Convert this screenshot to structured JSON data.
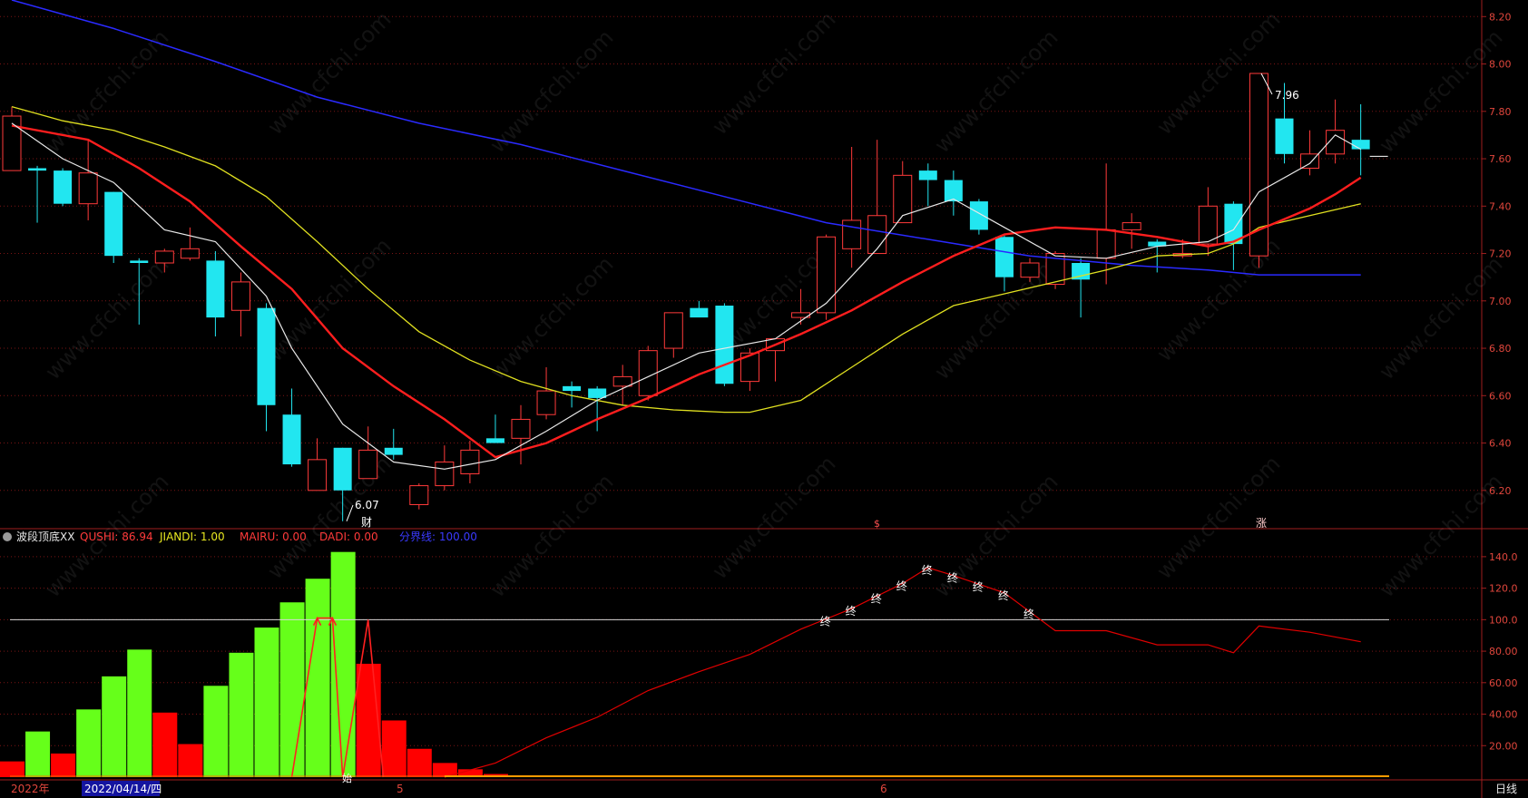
{
  "colors": {
    "background": "#000000",
    "grid": "#7a1414",
    "up": "#ff3a3a",
    "down": "#22e6f0",
    "ma5": "#e8e8e8",
    "ma10": "#ff1e1e",
    "ma20": "#e0e020",
    "ma60": "#2a2aff",
    "axis_text": "#e0463c",
    "indicator_green": "#66ff1a",
    "indicator_red": "#ff0000",
    "qushi_line": "#e00000"
  },
  "indicator_header": {
    "name": "波段顶底XX",
    "items": [
      {
        "label": "QUSHI: 86.94",
        "color": "#ff3a3a"
      },
      {
        "label": "JIANDI: 1.00",
        "color": "#e8e820"
      },
      {
        "label": "MAIRU: 0.00",
        "color": "#ff3a3a"
      },
      {
        "label": "DADI: 0.00",
        "color": "#ff3a3a"
      },
      {
        "label": "分界线: 100.00",
        "color": "#3a3aff"
      }
    ]
  },
  "price_axis": {
    "ticks": [
      "8.20",
      "8.00",
      "7.80",
      "7.60",
      "7.40",
      "7.20",
      "7.00",
      "6.80",
      "6.60",
      "6.40",
      "6.20"
    ]
  },
  "indicator_axis": {
    "ticks": [
      "140.0",
      "120.0",
      "100.0",
      "80.00",
      "60.00",
      "40.00",
      "20.00"
    ]
  },
  "date_axis": {
    "year_label": "2022年",
    "date_label": "2022/04/14/四",
    "month_labels": [
      "5",
      "6"
    ],
    "period_label": "日线"
  },
  "annotations": {
    "low_label": "6.07",
    "high_label": "7.96",
    "event_cai": "财",
    "event_s": "$",
    "event_zhang": "涨",
    "shi_label": "始",
    "zhong_label": "终"
  },
  "watermark": "www.cfchi.com",
  "chart_data": {
    "type": "candlestick",
    "price_range": [
      6.05,
      8.27
    ],
    "candles": [
      {
        "o": 7.55,
        "h": 7.82,
        "l": 7.55,
        "c": 7.78
      },
      {
        "o": 7.56,
        "h": 7.57,
        "l": 7.33,
        "c": 7.55
      },
      {
        "o": 7.55,
        "h": 7.56,
        "l": 7.4,
        "c": 7.41
      },
      {
        "o": 7.41,
        "h": 7.68,
        "l": 7.34,
        "c": 7.54
      },
      {
        "o": 7.46,
        "h": 7.46,
        "l": 7.16,
        "c": 7.19
      },
      {
        "o": 7.17,
        "h": 7.18,
        "l": 6.9,
        "c": 7.16
      },
      {
        "o": 7.16,
        "h": 7.22,
        "l": 7.12,
        "c": 7.21
      },
      {
        "o": 7.18,
        "h": 7.31,
        "l": 7.17,
        "c": 7.22
      },
      {
        "o": 7.17,
        "h": 7.21,
        "l": 6.85,
        "c": 6.93
      },
      {
        "o": 6.96,
        "h": 7.12,
        "l": 6.85,
        "c": 7.08
      },
      {
        "o": 6.97,
        "h": 6.99,
        "l": 6.45,
        "c": 6.56
      },
      {
        "o": 6.52,
        "h": 6.63,
        "l": 6.3,
        "c": 6.31
      },
      {
        "o": 6.2,
        "h": 6.42,
        "l": 6.2,
        "c": 6.33
      },
      {
        "o": 6.38,
        "h": 6.38,
        "l": 6.07,
        "c": 6.2
      },
      {
        "o": 6.25,
        "h": 6.47,
        "l": 6.25,
        "c": 6.37
      },
      {
        "o": 6.38,
        "h": 6.46,
        "l": 6.33,
        "c": 6.35
      },
      {
        "o": 6.14,
        "h": 6.23,
        "l": 6.12,
        "c": 6.22
      },
      {
        "o": 6.22,
        "h": 6.39,
        "l": 6.2,
        "c": 6.32
      },
      {
        "o": 6.27,
        "h": 6.41,
        "l": 6.23,
        "c": 6.37
      },
      {
        "o": 6.42,
        "h": 6.52,
        "l": 6.4,
        "c": 6.4
      },
      {
        "o": 6.42,
        "h": 6.56,
        "l": 6.31,
        "c": 6.5
      },
      {
        "o": 6.52,
        "h": 6.72,
        "l": 6.5,
        "c": 6.62
      },
      {
        "o": 6.64,
        "h": 6.66,
        "l": 6.55,
        "c": 6.62
      },
      {
        "o": 6.63,
        "h": 6.64,
        "l": 6.45,
        "c": 6.59
      },
      {
        "o": 6.64,
        "h": 6.73,
        "l": 6.56,
        "c": 6.68
      },
      {
        "o": 6.6,
        "h": 6.81,
        "l": 6.58,
        "c": 6.79
      },
      {
        "o": 6.8,
        "h": 6.95,
        "l": 6.76,
        "c": 6.95
      },
      {
        "o": 6.97,
        "h": 7.0,
        "l": 6.94,
        "c": 6.93
      },
      {
        "o": 6.98,
        "h": 6.99,
        "l": 6.64,
        "c": 6.65
      },
      {
        "o": 6.66,
        "h": 6.8,
        "l": 6.62,
        "c": 6.78
      },
      {
        "o": 6.79,
        "h": 6.84,
        "l": 6.66,
        "c": 6.84
      },
      {
        "o": 6.93,
        "h": 7.05,
        "l": 6.9,
        "c": 6.95
      },
      {
        "o": 6.95,
        "h": 7.28,
        "l": 6.92,
        "c": 7.27
      },
      {
        "o": 7.22,
        "h": 7.65,
        "l": 7.14,
        "c": 7.34
      },
      {
        "o": 7.2,
        "h": 7.68,
        "l": 7.2,
        "c": 7.36
      },
      {
        "o": 7.33,
        "h": 7.59,
        "l": 7.33,
        "c": 7.53
      },
      {
        "o": 7.55,
        "h": 7.58,
        "l": 7.4,
        "c": 7.51
      },
      {
        "o": 7.51,
        "h": 7.55,
        "l": 7.36,
        "c": 7.42
      },
      {
        "o": 7.42,
        "h": 7.43,
        "l": 7.28,
        "c": 7.3
      },
      {
        "o": 7.27,
        "h": 7.28,
        "l": 7.04,
        "c": 7.1
      },
      {
        "o": 7.1,
        "h": 7.18,
        "l": 7.08,
        "c": 7.16
      },
      {
        "o": 7.07,
        "h": 7.21,
        "l": 7.05,
        "c": 7.2
      },
      {
        "o": 7.16,
        "h": 7.18,
        "l": 6.93,
        "c": 7.09
      },
      {
        "o": 7.18,
        "h": 7.58,
        "l": 7.07,
        "c": 7.3
      },
      {
        "o": 7.3,
        "h": 7.37,
        "l": 7.22,
        "c": 7.33
      },
      {
        "o": 7.25,
        "h": 7.26,
        "l": 7.12,
        "c": 7.23
      },
      {
        "o": 7.19,
        "h": 7.26,
        "l": 7.18,
        "c": 7.2
      },
      {
        "o": 7.24,
        "h": 7.48,
        "l": 7.19,
        "c": 7.4
      },
      {
        "o": 7.41,
        "h": 7.42,
        "l": 7.13,
        "c": 7.24
      },
      {
        "o": 7.19,
        "h": 7.96,
        "l": 7.14,
        "c": 7.96
      },
      {
        "o": 7.77,
        "h": 7.92,
        "l": 7.58,
        "c": 7.62
      },
      {
        "o": 7.56,
        "h": 7.72,
        "l": 7.53,
        "c": 7.62
      },
      {
        "o": 7.62,
        "h": 7.85,
        "l": 7.58,
        "c": 7.72
      },
      {
        "o": 7.68,
        "h": 7.83,
        "l": 7.53,
        "c": 7.64
      }
    ],
    "ma_lines": {
      "ma5": [
        [
          0,
          7.75
        ],
        [
          2,
          7.6
        ],
        [
          4,
          7.5
        ],
        [
          6,
          7.3
        ],
        [
          8,
          7.25
        ],
        [
          10,
          7.02
        ],
        [
          11,
          6.8
        ],
        [
          13,
          6.48
        ],
        [
          15,
          6.32
        ],
        [
          17,
          6.29
        ],
        [
          19,
          6.33
        ],
        [
          21,
          6.45
        ],
        [
          23,
          6.58
        ],
        [
          25,
          6.68
        ],
        [
          27,
          6.78
        ],
        [
          30,
          6.84
        ],
        [
          32,
          6.99
        ],
        [
          34,
          7.22
        ],
        [
          35,
          7.36
        ],
        [
          37,
          7.43
        ],
        [
          39,
          7.31
        ],
        [
          41,
          7.19
        ],
        [
          43,
          7.18
        ],
        [
          45,
          7.23
        ],
        [
          47,
          7.25
        ],
        [
          48,
          7.3
        ],
        [
          49,
          7.46
        ],
        [
          51,
          7.58
        ],
        [
          52,
          7.7
        ],
        [
          53,
          7.64
        ]
      ],
      "ma10": [
        [
          0,
          7.74
        ],
        [
          3,
          7.68
        ],
        [
          5,
          7.56
        ],
        [
          7,
          7.42
        ],
        [
          9,
          7.23
        ],
        [
          11,
          7.05
        ],
        [
          13,
          6.8
        ],
        [
          15,
          6.64
        ],
        [
          17,
          6.5
        ],
        [
          19,
          6.34
        ],
        [
          21,
          6.4
        ],
        [
          23,
          6.5
        ],
        [
          25,
          6.59
        ],
        [
          27,
          6.69
        ],
        [
          29,
          6.77
        ],
        [
          31,
          6.86
        ],
        [
          33,
          6.96
        ],
        [
          35,
          7.08
        ],
        [
          37,
          7.19
        ],
        [
          39,
          7.28
        ],
        [
          41,
          7.31
        ],
        [
          43,
          7.3
        ],
        [
          45,
          7.27
        ],
        [
          47,
          7.23
        ],
        [
          48,
          7.25
        ],
        [
          49,
          7.3
        ],
        [
          51,
          7.39
        ],
        [
          52,
          7.45
        ],
        [
          53,
          7.52
        ]
      ],
      "ma20": [
        [
          0,
          7.82
        ],
        [
          2,
          7.76
        ],
        [
          4,
          7.72
        ],
        [
          6,
          7.65
        ],
        [
          8,
          7.57
        ],
        [
          10,
          7.44
        ],
        [
          12,
          7.25
        ],
        [
          14,
          7.05
        ],
        [
          16,
          6.87
        ],
        [
          18,
          6.75
        ],
        [
          20,
          6.66
        ],
        [
          22,
          6.6
        ],
        [
          24,
          6.56
        ],
        [
          26,
          6.54
        ],
        [
          28,
          6.53
        ],
        [
          29,
          6.53
        ],
        [
          31,
          6.58
        ],
        [
          33,
          6.72
        ],
        [
          35,
          6.86
        ],
        [
          37,
          6.98
        ],
        [
          39,
          7.03
        ],
        [
          41,
          7.08
        ],
        [
          43,
          7.13
        ],
        [
          45,
          7.19
        ],
        [
          47,
          7.2
        ],
        [
          48,
          7.24
        ],
        [
          49,
          7.31
        ],
        [
          51,
          7.36
        ],
        [
          53,
          7.41
        ]
      ],
      "ma60": [
        [
          0,
          8.27
        ],
        [
          4,
          8.15
        ],
        [
          8,
          8.01
        ],
        [
          12,
          7.86
        ],
        [
          16,
          7.75
        ],
        [
          20,
          7.66
        ],
        [
          24,
          7.55
        ],
        [
          28,
          7.44
        ],
        [
          32,
          7.33
        ],
        [
          36,
          7.26
        ],
        [
          40,
          7.19
        ],
        [
          44,
          7.15
        ],
        [
          47,
          7.13
        ],
        [
          49,
          7.11
        ],
        [
          53,
          7.11
        ]
      ]
    },
    "indicator": {
      "range": [
        0,
        148
      ],
      "green_bars": [
        [
          1,
          29
        ],
        [
          3,
          43
        ],
        [
          4,
          64
        ],
        [
          5,
          81
        ],
        [
          8,
          58
        ],
        [
          9,
          79
        ],
        [
          10,
          95
        ],
        [
          11,
          111
        ],
        [
          12,
          126
        ],
        [
          13,
          143
        ]
      ],
      "red_bars": [
        [
          0,
          10
        ],
        [
          2,
          15
        ],
        [
          6,
          41
        ],
        [
          7,
          21
        ],
        [
          14,
          72
        ],
        [
          15,
          36
        ],
        [
          16,
          18
        ],
        [
          17,
          9
        ],
        [
          18,
          5
        ],
        [
          19,
          2
        ]
      ],
      "qushi_line": [
        [
          17,
          0
        ],
        [
          19,
          9
        ],
        [
          21,
          25
        ],
        [
          23,
          38
        ],
        [
          25,
          55
        ],
        [
          27,
          67
        ],
        [
          29,
          78
        ],
        [
          31,
          94
        ],
        [
          33,
          107
        ],
        [
          35,
          123
        ],
        [
          36,
          133
        ],
        [
          37,
          128
        ],
        [
          39,
          117
        ],
        [
          41,
          93
        ],
        [
          43,
          93
        ],
        [
          45,
          84
        ],
        [
          47,
          84
        ],
        [
          48,
          79
        ],
        [
          49,
          96
        ],
        [
          51,
          92
        ],
        [
          53,
          86
        ]
      ],
      "boundary": 100,
      "signal_line": [
        [
          11,
          0
        ],
        [
          12,
          101
        ],
        [
          12.6,
          101
        ],
        [
          13,
          0
        ],
        [
          14,
          100
        ],
        [
          14.6,
          0
        ]
      ],
      "zhong_marks": [
        32,
        33,
        34,
        35,
        36,
        37,
        38,
        39,
        40
      ]
    }
  }
}
